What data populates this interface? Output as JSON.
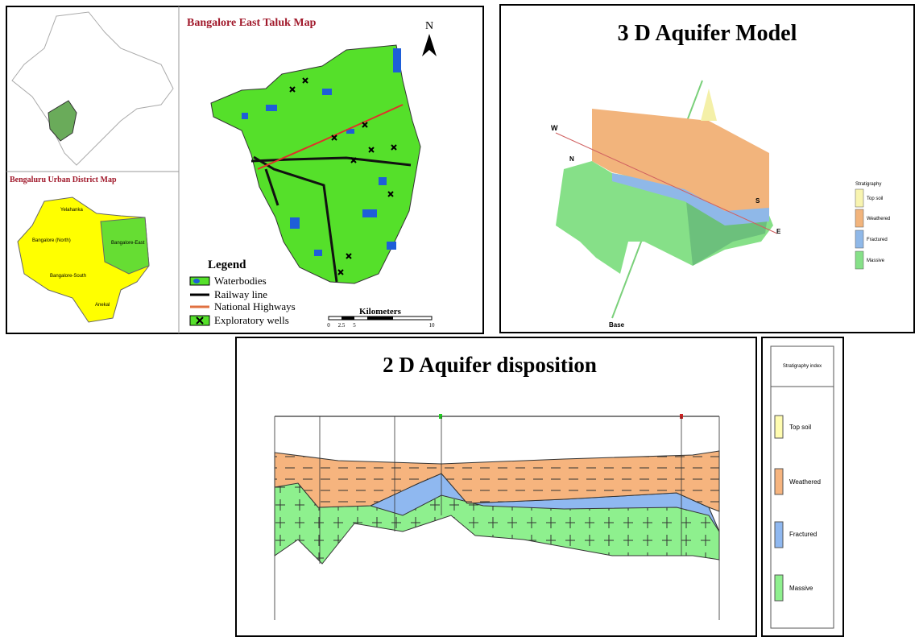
{
  "taluk_map": {
    "title": "Bangalore East Taluk Map",
    "north": "N",
    "legend": {
      "title": "Legend",
      "items": [
        "Waterbodies",
        "Railway line",
        "National Highways",
        "Exploratory wells"
      ]
    },
    "scale": {
      "title": "Kilometers",
      "labels": [
        "0",
        "2.5",
        "5",
        "10"
      ]
    }
  },
  "district_map": {
    "title": "Bengaluru Urban District Map",
    "regions": [
      "Yelahanka",
      "Bangalore (North)",
      "Bangalore-East",
      "Bangalore-South",
      "Anekal"
    ]
  },
  "model_3d": {
    "title": "3 D Aquifer Model",
    "directions": [
      "W",
      "N",
      "S",
      "E"
    ],
    "base": "Base",
    "legend": {
      "title": "Stratigraphy",
      "items": [
        "Top soil",
        "Weathered",
        "Fractured",
        "Massive"
      ]
    }
  },
  "section_2d": {
    "title": "2 D Aquifer disposition",
    "index": {
      "title": "Stratigraphy index",
      "items": [
        "Top soil",
        "Weathered",
        "Fractured",
        "Massive"
      ]
    }
  }
}
